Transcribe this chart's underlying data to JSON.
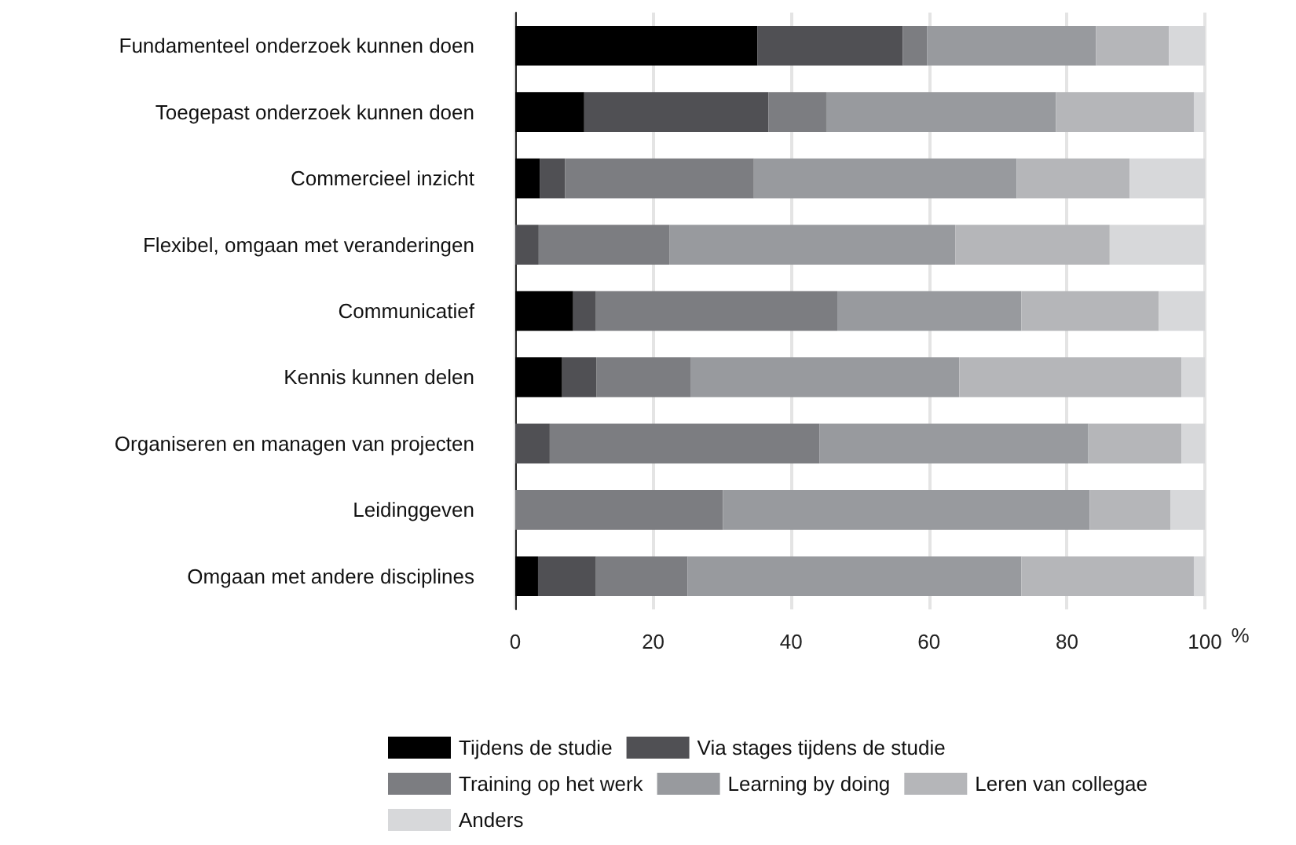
{
  "chart_data": {
    "type": "bar",
    "orientation": "horizontal",
    "stacked": true,
    "xlabel": "%",
    "categories": [
      "Fundamenteel onderzoek kunnen doen",
      "Toegepast onderzoek kunnen doen",
      "Commercieel inzicht",
      "Flexibel, omgaan met veranderingen",
      "Communicatief",
      "Kennis kunnen delen",
      "Organiseren en managen van projecten",
      "Leidinggeven",
      "Omgaan met andere disciplines"
    ],
    "series": [
      {
        "name": "Tijdens de studie",
        "color": "#000000",
        "values": [
          35.1,
          10.0,
          3.6,
          0,
          8.4,
          6.8,
          0,
          0,
          3.3
        ]
      },
      {
        "name": "Via stages tijdens de studie",
        "color": "#505054",
        "values": [
          21.1,
          26.7,
          3.6,
          3.4,
          3.3,
          5.0,
          5.0,
          0,
          8.4
        ]
      },
      {
        "name": "Training op het werk",
        "color": "#7c7d81",
        "values": [
          3.5,
          8.4,
          27.4,
          19.0,
          35.0,
          13.6,
          39.1,
          30.1,
          13.3
        ]
      },
      {
        "name": "Learning by doing",
        "color": "#989a9e",
        "values": [
          24.5,
          33.3,
          38.1,
          41.4,
          26.7,
          39.0,
          39.0,
          53.2,
          48.4
        ]
      },
      {
        "name": "Leren van collegae",
        "color": "#b5b6b9",
        "values": [
          10.6,
          20.0,
          16.4,
          22.4,
          19.9,
          32.2,
          13.5,
          11.7,
          25.0
        ]
      },
      {
        "name": "Anders",
        "color": "#d7d8da",
        "values": [
          5.2,
          1.6,
          10.9,
          13.8,
          6.7,
          3.4,
          3.4,
          5.0,
          1.6
        ]
      }
    ],
    "xlim": [
      0,
      100
    ],
    "xticks": [
      0,
      20,
      40,
      60,
      80,
      100
    ],
    "grid": "x",
    "legend": "bottom"
  }
}
